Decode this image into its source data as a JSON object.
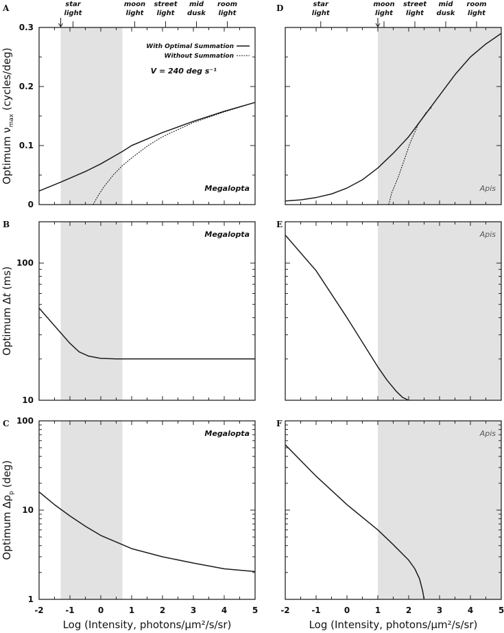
{
  "chart_data": {
    "type": "line",
    "xlabel": "Log (Intensity, photons/µm²/s/sr)",
    "xlim": [
      -2,
      5
    ],
    "xticks": [
      "-2",
      "-1",
      "0",
      "1",
      "2",
      "3",
      "4",
      "5"
    ],
    "shade_color": "#e2e2e2",
    "line_color": "#1a1a1a",
    "light_levels": [
      {
        "label1": "star",
        "label2": "light"
      },
      {
        "label1": "moon",
        "label2": "light"
      },
      {
        "label1": "street",
        "label2": "light"
      },
      {
        "label1": "mid",
        "label2": "dusk"
      },
      {
        "label1": "room",
        "label2": "light"
      }
    ],
    "legend": {
      "solid": "With Optimal Summation",
      "dashed": "Without Summation",
      "velocity": "V = 240 deg s⁻¹"
    },
    "ylabels": {
      "vmax": {
        "pre": "Optimum ν",
        "sub": "max",
        "post": " (cycles/deg)"
      },
      "dt": {
        "pre": "Optimum Δ",
        "ital": "t",
        "post": " (ms)"
      },
      "drho": {
        "pre": "Optimum Δρ",
        "sub": "p",
        "post": " (deg)"
      }
    },
    "panels": [
      {
        "letter": "A",
        "species": "Megalopta",
        "yscale": "linear",
        "ylim": [
          0,
          0.3
        ],
        "yticks": [
          "0",
          "0.1",
          "0.2",
          "0.3"
        ],
        "ytickvals": [
          0,
          0.1,
          0.2,
          0.3
        ],
        "ylabel": "vmax",
        "shade": [
          -1.3,
          0.7
        ],
        "arrow_x": -1.3,
        "light_x": [
          -0.9,
          1.1,
          2.1,
          3.1,
          4.1
        ],
        "legend": true,
        "series": [
          {
            "name": "With Optimal Summation",
            "style": "solid",
            "x": [
              -2,
              -1.3,
              -0.5,
              0,
              0.7,
              1,
              2,
              3,
              4,
              5
            ],
            "y": [
              0.023,
              0.038,
              0.056,
              0.069,
              0.09,
              0.1,
              0.122,
              0.141,
              0.158,
              0.173
            ]
          },
          {
            "name": "Without Summation",
            "style": "dashed",
            "x": [
              -0.25,
              -0.1,
              0.1,
              0.4,
              0.7,
              1,
              1.5,
              2,
              3,
              4,
              5
            ],
            "y": [
              0,
              0.014,
              0.03,
              0.05,
              0.066,
              0.079,
              0.099,
              0.115,
              0.139,
              0.157,
              0.173
            ]
          }
        ]
      },
      {
        "letter": "B",
        "species": "Megalopta",
        "yscale": "log",
        "ylim": [
          10,
          200
        ],
        "yticks": [
          "10",
          "100"
        ],
        "ytickvals": [
          10,
          100
        ],
        "ylabel": "dt",
        "shade": [
          -1.3,
          0.7
        ],
        "series": [
          {
            "name": "With Optimal Summation",
            "style": "solid",
            "x": [
              -2,
              -1.6,
              -1.3,
              -1,
              -0.7,
              -0.4,
              0,
              0.5,
              1,
              2,
              3,
              4,
              5
            ],
            "y": [
              47,
              37,
              31,
              26,
              22.5,
              21,
              20.2,
              20,
              20,
              20,
              20,
              20,
              20
            ]
          }
        ]
      },
      {
        "letter": "C",
        "species": "Megalopta",
        "yscale": "log",
        "ylim": [
          1,
          100
        ],
        "yticks": [
          "1",
          "10",
          "100"
        ],
        "ytickvals": [
          1,
          10,
          100
        ],
        "ylabel": "drho",
        "shade": [
          -1.3,
          0.7
        ],
        "series": [
          {
            "name": "With Optimal Summation",
            "style": "solid",
            "x": [
              -2,
              -1.5,
              -1,
              -0.5,
              0,
              0.7,
              1,
              2,
              3,
              4,
              5
            ],
            "y": [
              16,
              11.5,
              8.6,
              6.6,
              5.2,
              4.1,
              3.7,
              3.0,
              2.55,
              2.2,
              2.05
            ]
          }
        ]
      },
      {
        "letter": "D",
        "species": "Apis",
        "yscale": "linear",
        "ylim": [
          0,
          0.3
        ],
        "yticks": [],
        "ytickvals": [
          0,
          0.1,
          0.2,
          0.3
        ],
        "ylabel": null,
        "shade": [
          1,
          5
        ],
        "arrow_x": 1.0,
        "light_x": [
          -0.85,
          1.2,
          2.2,
          3.2,
          4.2
        ],
        "series": [
          {
            "name": "With Optimal Summation",
            "style": "solid",
            "x": [
              -2,
              -1.5,
              -1,
              -0.5,
              0,
              0.5,
              1,
              1.5,
              2,
              2.5,
              3,
              3.5,
              4,
              4.5,
              5
            ],
            "y": [
              0.006,
              0.008,
              0.012,
              0.018,
              0.028,
              0.042,
              0.062,
              0.087,
              0.115,
              0.15,
              0.185,
              0.22,
              0.25,
              0.272,
              0.29
            ]
          },
          {
            "name": "Without Summation",
            "style": "dashed",
            "x": [
              1.35,
              1.45,
              1.65,
              1.85,
              2.05,
              2.3,
              2.55,
              2.75
            ],
            "y": [
              0,
              0.02,
              0.045,
              0.075,
              0.105,
              0.135,
              0.155,
              0.165
            ]
          }
        ]
      },
      {
        "letter": "E",
        "species": "Apis",
        "yscale": "log",
        "ylim": [
          10,
          200
        ],
        "yticks": [],
        "ytickvals": [
          10,
          100
        ],
        "ylabel": null,
        "shade": [
          1,
          5
        ],
        "series": [
          {
            "name": "With Optimal Summation",
            "style": "solid",
            "x": [
              -2,
              -1,
              0,
              1,
              1.3,
              1.6,
              1.8,
              2.0
            ],
            "y": [
              160,
              88,
              40,
              17.5,
              14,
              11.6,
              10.5,
              10
            ]
          }
        ]
      },
      {
        "letter": "F",
        "species": "Apis",
        "yscale": "log",
        "ylim": [
          1,
          100
        ],
        "yticks": [],
        "ytickvals": [
          1,
          10,
          100
        ],
        "ylabel": null,
        "shade": [
          1,
          5
        ],
        "series": [
          {
            "name": "With Optimal Summation",
            "style": "solid",
            "x": [
              -2,
              -1,
              0,
              1,
              1.5,
              2,
              2.2,
              2.35,
              2.45,
              2.5
            ],
            "y": [
              54,
              24,
              11.5,
              6,
              4.1,
              2.75,
              2.2,
              1.7,
              1.25,
              1
            ]
          }
        ]
      }
    ]
  }
}
